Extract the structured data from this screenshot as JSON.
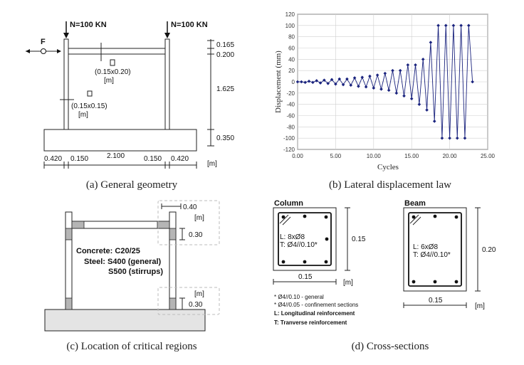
{
  "panel_a": {
    "caption": "(a) General geometry",
    "load_left": "N=100 KN",
    "load_right": "N=100 KN",
    "force_label": "F",
    "beam_section": "(0.15x0.20)",
    "beam_unit": "[m]",
    "col_section": "(0.15x0.15)",
    "col_unit": "[m]",
    "dims_vertical": [
      "0.165",
      "0.200",
      "1.625",
      "0.350"
    ],
    "dims_horizontal": [
      "0.420",
      "0.150",
      "2.100",
      "0.150",
      "0.420"
    ],
    "dims_unit": "[m]"
  },
  "panel_b": {
    "caption": "(b) Lateral displacement law"
  },
  "panel_c": {
    "caption": "(c) Location of critical regions",
    "dim_top": "0.40",
    "unit_top": "[m]",
    "dim_mid": "0.30",
    "unit_bottom": "[m]",
    "dim_bottom": "0.30",
    "concrete": "Concrete: C20/25",
    "steel": "Steel: S400 (general)",
    "steel2": "S500 (stirrups)"
  },
  "panel_d": {
    "caption": "(d) Cross-sections",
    "col_title": "Column",
    "col_long": "L:  8xØ8",
    "col_trans": "T: Ø4//0.10*",
    "col_height": "0.15",
    "col_width": "0.15",
    "col_unit": "[m]",
    "beam_title": "Beam",
    "beam_long": "L:  6xØ8",
    "beam_trans": "T: Ø4//0.10*",
    "beam_height": "0.20",
    "beam_width": "0.15",
    "beam_unit": "[m]",
    "notes": [
      "* Ø4//0.10 - general",
      "* Ø4//0.05 - confinement sections",
      "L: Longitudinal reinforcement",
      "T: Tranverse reinforcement"
    ]
  },
  "chart_data": {
    "type": "line",
    "title": "",
    "xlabel": "Cycles",
    "ylabel": "Displacement (mm)",
    "xlim": [
      0,
      25
    ],
    "ylim": [
      -120,
      120
    ],
    "x_ticks": [
      "0.00",
      "5.00",
      "10.00",
      "15.00",
      "20.00",
      "25.00"
    ],
    "y_ticks": [
      "120",
      "100",
      "80",
      "60",
      "40",
      "20",
      "0",
      "-20",
      "-40",
      "-60",
      "-80",
      "-100",
      "-120"
    ],
    "x": [
      0,
      0.5,
      1,
      1.5,
      2,
      2.5,
      3,
      3.5,
      4,
      4.5,
      5,
      5.5,
      6,
      6.5,
      7,
      7.5,
      8,
      8.5,
      9,
      9.5,
      10,
      10.5,
      11,
      11.5,
      12,
      12.5,
      13,
      13.5,
      14,
      14.5,
      15,
      15.5,
      16,
      16.5,
      17,
      17.5,
      18,
      18.5,
      19,
      19.5,
      20,
      20.5,
      21,
      21.5,
      22,
      22.5,
      23
    ],
    "y": [
      0,
      0,
      -1,
      1,
      -1,
      2,
      -2,
      3,
      -3,
      4,
      -4,
      5,
      -5,
      5,
      -6,
      7,
      -8,
      8,
      -9,
      10,
      -11,
      12,
      -13,
      15,
      -15,
      20,
      -20,
      20,
      -25,
      30,
      -30,
      30,
      -40,
      40,
      -50,
      70,
      -70,
      100,
      -100,
      100,
      -100,
      100,
      -100,
      100,
      -100,
      100,
      0
    ],
    "series": [
      {
        "name": "Displacement",
        "color": "#1a237e"
      }
    ]
  }
}
